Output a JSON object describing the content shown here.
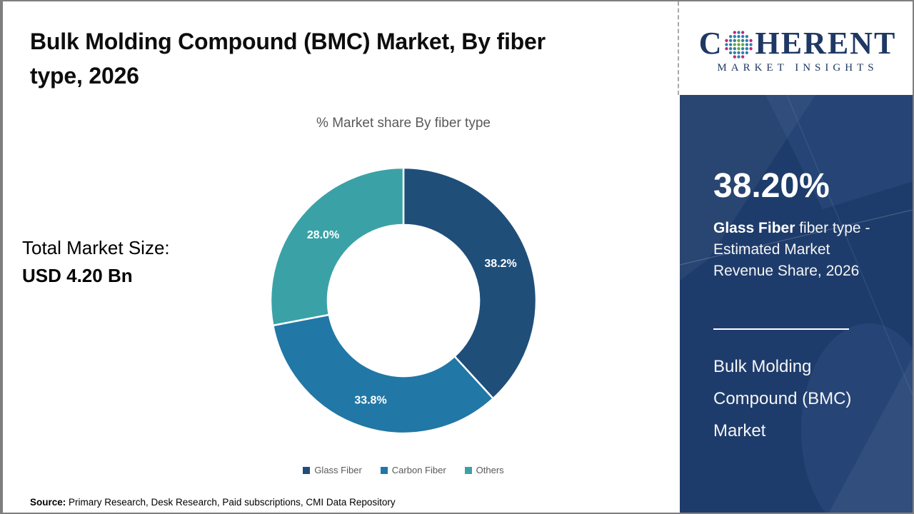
{
  "header": {
    "title": "Bulk Molding Compound (BMC) Market, By fiber type, 2026",
    "title_lines": [
      "Bulk Molding Compound (BMC) Market, By fiber",
      "type, 2026"
    ]
  },
  "logo": {
    "word_start": "C",
    "word_end": "HERENT",
    "subtitle": "MARKET INSIGHTS",
    "navy": "#1F3864",
    "globe_colors": {
      "inner_green": "#5FA845",
      "mid_blue": "#2E7EA6",
      "outer_magenta": "#C0267C"
    }
  },
  "market_size": {
    "label": "Total Market Size:",
    "value": "USD 4.20 Bn"
  },
  "chart_data": {
    "type": "pie",
    "variant": "donut",
    "title": "% Market share By fiber type",
    "categories": [
      "Glass Fiber",
      "Carbon Fiber",
      "Others"
    ],
    "values": [
      38.2,
      33.8,
      28.0
    ],
    "labels": [
      "38.2%",
      "33.8%",
      "28.0%"
    ],
    "colors": [
      "#1F4E79",
      "#2177A6",
      "#3AA2A6"
    ],
    "start_angle_deg": 0,
    "direction": "clockwise",
    "legend_position": "bottom"
  },
  "sidebar": {
    "headline_value": "38.20%",
    "highlight_bold": "Glass Fiber",
    "highlight_rest": " fiber type - Estimated Market Revenue Share, 2026",
    "market_name": "Bulk Molding Compound (BMC) Market",
    "background": "#1E3C6B"
  },
  "source": {
    "label": "Source:",
    "text": " Primary Research, Desk Research, Paid subscriptions, CMI Data Repository"
  },
  "colors": {
    "title_text": "#0D0D0D",
    "muted_text": "#595959",
    "page_border": "#7F7F7F"
  }
}
